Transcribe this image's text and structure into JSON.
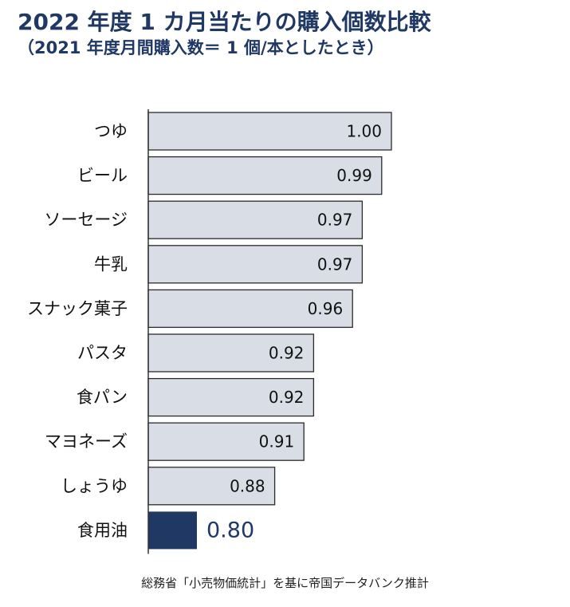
{
  "header": {
    "title": "2022 年度 1 カ月当たりの購入個数比較",
    "subtitle": "（2021 年度月間購入数＝ 1 個/本としたとき）"
  },
  "footer": {
    "source": "総務省「小売物価統計」を基に帝国データバンク推計"
  },
  "colors": {
    "bar_default": "#d9dde6",
    "bar_border": "#2b2b2b",
    "bar_highlight": "#1f3864",
    "label_text": "#111111",
    "highlight_text": "#1f3864"
  },
  "chart_data": {
    "type": "bar",
    "orientation": "horizontal",
    "categories": [
      "つゆ",
      "ビール",
      "ソーセージ",
      "牛乳",
      "スナック菓子",
      "パスタ",
      "食パン",
      "マヨネーズ",
      "しょうゆ",
      "食用油"
    ],
    "values": [
      1.0,
      0.99,
      0.97,
      0.97,
      0.96,
      0.92,
      0.92,
      0.91,
      0.88,
      0.8
    ],
    "value_labels": [
      "1.00",
      "0.99",
      "0.97",
      "0.97",
      "0.96",
      "0.92",
      "0.92",
      "0.91",
      "0.88",
      "0.80"
    ],
    "highlight": "食用油",
    "xlim": [
      0.75,
      1.0
    ],
    "grid": false
  }
}
